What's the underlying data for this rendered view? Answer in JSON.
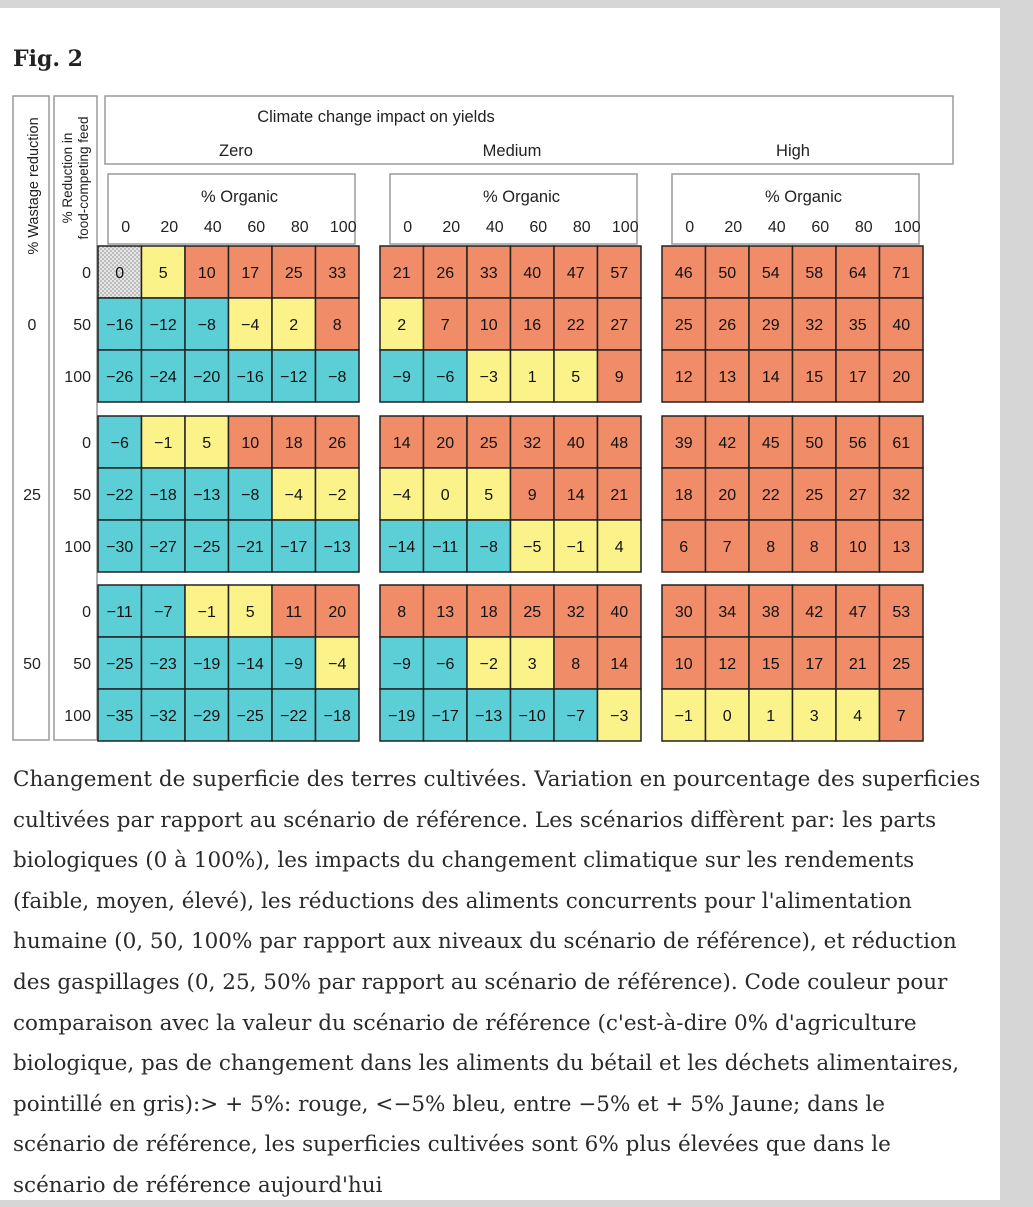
{
  "figure_label": "Fig. 2",
  "caption": "Changement de superficie des terres cultivées. Variation en pourcentage des superficies cultivées par rapport au scénario de référence. Les scénarios diffèrent par: les parts biologiques (0 à 100%), les impacts du changement climatique sur les rendements (faible, moyen, élevé), les réductions des aliments concurrents pour l'alimentation humaine (0, 50, 100% par rapport aux niveaux du scénario de référence), et réduction des gaspillages (0, 25, 50% par rapport au scénario de référence). Code couleur pour comparaison avec la valeur du scénario de référence (c'est-à-dire 0% d'agriculture biologique, pas de changement dans les aliments du bétail et les déchets alimentaires, pointillé en gris):> + 5%: rouge, <−5% bleu, entre −5% et + 5% Jaune; dans le scénario de référence, les superficies cultivées sont 6% plus élevées que dans le scénario de référence aujourd'hui",
  "colors": {
    "red": "#f08c68",
    "blue": "#5ccfd6",
    "yellow": "#fcf28a",
    "reference": "#e4e4e4",
    "border": "#222222"
  },
  "chart_data": {
    "type": "heatmap",
    "title": "Climate change impact on yields",
    "column_group_title": "% Organic",
    "row_axis_outer_label": "% Wastage reduction",
    "row_axis_inner_label_line1": "% Reduction in",
    "row_axis_inner_label_line2": "food-competing feed",
    "climate_scenarios": [
      "Zero",
      "Medium",
      "High"
    ],
    "organic_levels": [
      "0",
      "20",
      "40",
      "60",
      "80",
      "100"
    ],
    "wastage_levels": [
      "0",
      "25",
      "50"
    ],
    "feed_levels": [
      "0",
      "50",
      "100"
    ],
    "values": [
      [
        [
          [
            0,
            5,
            10,
            17,
            25,
            33
          ],
          [
            21,
            26,
            33,
            40,
            47,
            57
          ],
          [
            46,
            50,
            54,
            58,
            64,
            71
          ]
        ],
        [
          [
            -16,
            -12,
            -8,
            -4,
            2,
            8
          ],
          [
            2,
            7,
            10,
            16,
            22,
            27
          ],
          [
            25,
            26,
            29,
            32,
            35,
            40
          ]
        ],
        [
          [
            -26,
            -24,
            -20,
            -16,
            -12,
            -8
          ],
          [
            -9,
            -6,
            -3,
            1,
            5,
            9
          ],
          [
            12,
            13,
            14,
            15,
            17,
            20
          ]
        ]
      ],
      [
        [
          [
            -6,
            -1,
            5,
            10,
            18,
            26
          ],
          [
            14,
            20,
            25,
            32,
            40,
            48
          ],
          [
            39,
            42,
            45,
            50,
            56,
            61
          ]
        ],
        [
          [
            -22,
            -18,
            -13,
            -8,
            -4,
            -2
          ],
          [
            -4,
            0,
            5,
            9,
            14,
            21
          ],
          [
            18,
            20,
            22,
            25,
            27,
            32
          ]
        ],
        [
          [
            -30,
            -27,
            -25,
            -21,
            -17,
            -13
          ],
          [
            -14,
            -11,
            -8,
            -5,
            -1,
            4
          ],
          [
            6,
            7,
            8,
            8,
            10,
            13
          ]
        ]
      ],
      [
        [
          [
            -11,
            -7,
            -1,
            5,
            11,
            20
          ],
          [
            8,
            13,
            18,
            25,
            32,
            40
          ],
          [
            30,
            34,
            38,
            42,
            47,
            53
          ]
        ],
        [
          [
            -25,
            -23,
            -19,
            -14,
            -9,
            -4
          ],
          [
            -9,
            -6,
            -2,
            3,
            8,
            14
          ],
          [
            10,
            12,
            15,
            17,
            21,
            25
          ]
        ],
        [
          [
            -35,
            -32,
            -29,
            -25,
            -22,
            -18
          ],
          [
            -19,
            -17,
            -13,
            -10,
            -7,
            -3
          ],
          [
            -1,
            0,
            1,
            3,
            4,
            7
          ]
        ]
      ]
    ],
    "color_thresholds": {
      "red_above": 5,
      "blue_below": -5
    },
    "reference_cell": {
      "wastage": "0",
      "feed": "0",
      "climate": "Zero",
      "organic": "0"
    }
  }
}
